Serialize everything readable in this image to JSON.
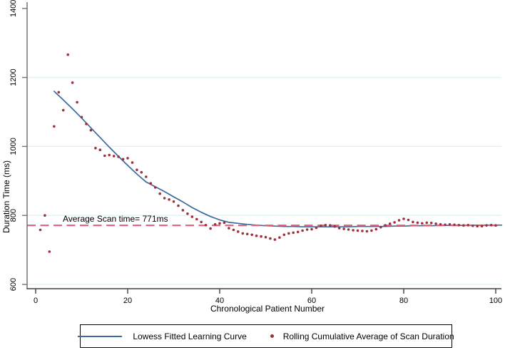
{
  "chart_data": {
    "type": "line+scatter",
    "xlabel": "Chronological Patient Number",
    "ylabel": "Duration Time (ms)",
    "x_ticks": [
      0,
      20,
      40,
      60,
      80,
      100
    ],
    "y_ticks": [
      600,
      800,
      1000,
      1200,
      1400
    ],
    "grid_ticks": [
      600,
      800,
      1000,
      1200
    ],
    "xlim": [
      -1.9,
      101.3
    ],
    "ylim": [
      588,
      1418
    ],
    "grid_on": true,
    "legend_position": "bottom",
    "annotation": {
      "text": "Average Scan time= 771ms",
      "value_ms": 771
    },
    "reference_line": {
      "value": 771,
      "style": "dashed",
      "color": "#df5f7d"
    },
    "grid_color": "#e2f0f1",
    "axis_color_y": "#737373",
    "axis_color_x": "#404040",
    "series": [
      {
        "name": "Lowess Fitted Learning Curve",
        "type": "line",
        "color": "#3a6a9e",
        "points": [
          [
            4,
            1160
          ],
          [
            6,
            1135
          ],
          [
            8,
            1109
          ],
          [
            10,
            1082
          ],
          [
            12,
            1054
          ],
          [
            14,
            1026
          ],
          [
            16,
            998
          ],
          [
            18,
            971
          ],
          [
            20,
            945
          ],
          [
            22,
            920
          ],
          [
            24,
            897
          ],
          [
            26,
            883
          ],
          [
            28,
            869
          ],
          [
            30,
            854
          ],
          [
            32,
            839
          ],
          [
            34,
            823
          ],
          [
            36,
            809
          ],
          [
            38,
            797
          ],
          [
            40,
            787
          ],
          [
            42,
            780
          ],
          [
            44,
            777
          ],
          [
            46,
            774
          ],
          [
            48,
            772
          ],
          [
            50,
            770
          ],
          [
            52,
            769
          ],
          [
            54,
            768
          ],
          [
            56,
            768
          ],
          [
            58,
            767
          ],
          [
            60,
            767
          ],
          [
            62,
            767
          ],
          [
            64,
            767
          ],
          [
            66,
            767
          ],
          [
            68,
            767
          ],
          [
            70,
            768
          ],
          [
            72,
            768
          ],
          [
            74,
            768
          ],
          [
            76,
            768
          ],
          [
            78,
            769
          ],
          [
            80,
            769
          ],
          [
            82,
            770
          ],
          [
            84,
            770
          ],
          [
            86,
            770
          ],
          [
            88,
            771
          ],
          [
            90,
            771
          ],
          [
            92,
            771
          ],
          [
            94,
            771
          ],
          [
            96,
            772
          ],
          [
            98,
            772
          ],
          [
            100,
            772
          ],
          [
            101.3,
            772
          ]
        ]
      },
      {
        "name": "Rolling Cumulative Average of Scan Duration",
        "type": "scatter",
        "color": "#9c323d",
        "points": [
          [
            1,
            758
          ],
          [
            2,
            800
          ],
          [
            3,
            695
          ],
          [
            4,
            1058
          ],
          [
            5,
            1157
          ],
          [
            6,
            1105
          ],
          [
            7,
            1266
          ],
          [
            8,
            1185
          ],
          [
            9,
            1128
          ],
          [
            10,
            1085
          ],
          [
            11,
            1065
          ],
          [
            12,
            1047
          ],
          [
            13,
            995
          ],
          [
            14,
            990
          ],
          [
            15,
            973
          ],
          [
            16,
            975
          ],
          [
            17,
            972
          ],
          [
            18,
            970
          ],
          [
            19,
            963
          ],
          [
            20,
            966
          ],
          [
            21,
            953
          ],
          [
            22,
            932
          ],
          [
            23,
            925
          ],
          [
            24,
            912
          ],
          [
            25,
            893
          ],
          [
            26,
            881
          ],
          [
            27,
            863
          ],
          [
            28,
            850
          ],
          [
            29,
            846
          ],
          [
            30,
            840
          ],
          [
            31,
            828
          ],
          [
            32,
            815
          ],
          [
            33,
            805
          ],
          [
            34,
            796
          ],
          [
            35,
            789
          ],
          [
            36,
            781
          ],
          [
            37,
            772
          ],
          [
            38,
            762
          ],
          [
            39,
            774
          ],
          [
            40,
            777
          ],
          [
            41,
            779
          ],
          [
            42,
            763
          ],
          [
            43,
            758
          ],
          [
            44,
            753
          ],
          [
            45,
            748
          ],
          [
            46,
            746
          ],
          [
            47,
            744
          ],
          [
            48,
            741
          ],
          [
            49,
            739
          ],
          [
            50,
            737
          ],
          [
            51,
            733
          ],
          [
            52,
            730
          ],
          [
            53,
            736
          ],
          [
            54,
            744
          ],
          [
            55,
            748
          ],
          [
            56,
            750
          ],
          [
            57,
            752
          ],
          [
            58,
            756
          ],
          [
            59,
            759
          ],
          [
            60,
            760
          ],
          [
            61,
            764
          ],
          [
            62,
            770
          ],
          [
            63,
            772
          ],
          [
            64,
            771
          ],
          [
            65,
            768
          ],
          [
            66,
            763
          ],
          [
            67,
            761
          ],
          [
            68,
            759
          ],
          [
            69,
            757
          ],
          [
            70,
            756
          ],
          [
            71,
            755
          ],
          [
            72,
            754
          ],
          [
            73,
            756
          ],
          [
            74,
            760
          ],
          [
            75,
            766
          ],
          [
            76,
            771
          ],
          [
            77,
            776
          ],
          [
            78,
            780
          ],
          [
            79,
            786
          ],
          [
            80,
            790
          ],
          [
            81,
            787
          ],
          [
            82,
            781
          ],
          [
            83,
            779
          ],
          [
            84,
            777
          ],
          [
            85,
            779
          ],
          [
            86,
            778
          ],
          [
            87,
            776
          ],
          [
            88,
            774
          ],
          [
            89,
            773
          ],
          [
            90,
            774
          ],
          [
            91,
            773
          ],
          [
            92,
            772
          ],
          [
            93,
            771
          ],
          [
            94,
            772
          ],
          [
            95,
            770
          ],
          [
            96,
            769
          ],
          [
            97,
            769
          ],
          [
            98,
            771
          ],
          [
            99,
            772
          ],
          [
            100,
            771
          ]
        ]
      }
    ]
  }
}
